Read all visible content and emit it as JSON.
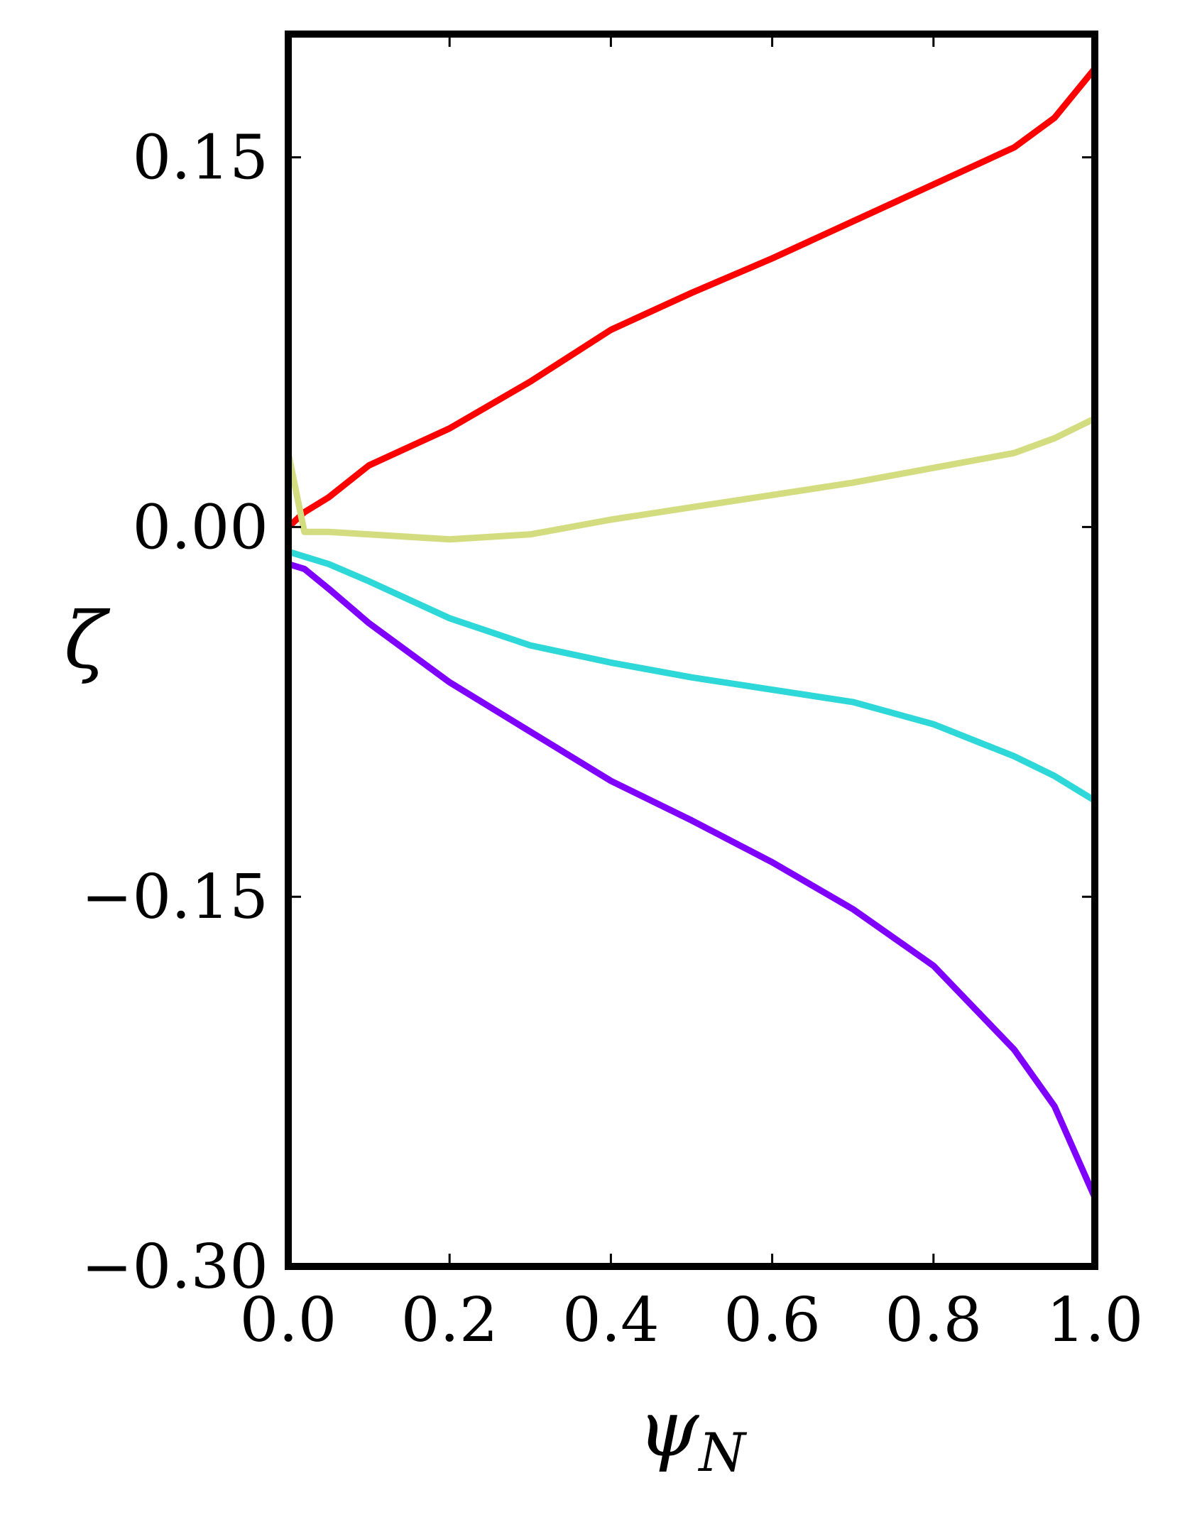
{
  "chart_data": {
    "type": "line",
    "xlabel": "ψ_N",
    "ylabel": "ζ",
    "xlim": [
      0,
      1
    ],
    "ylim": [
      -0.3,
      0.2
    ],
    "xticks": [
      "0.0",
      "0.2",
      "0.4",
      "0.6",
      "0.8",
      "1.0"
    ],
    "yticks": [
      "0.15",
      "0.00",
      "−0.15",
      "−0.30"
    ],
    "ytick_values": [
      0.15,
      0,
      -0.15,
      -0.3
    ],
    "xtick_values": [
      0,
      0.2,
      0.4,
      0.6,
      0.8,
      1.0
    ],
    "grid": false,
    "legend": "none",
    "x": [
      0,
      0.02,
      0.05,
      0.1,
      0.2,
      0.3,
      0.4,
      0.5,
      0.6,
      0.7,
      0.8,
      0.9,
      0.95,
      1.0
    ],
    "series": [
      {
        "color": "#ff0000",
        "values": [
          0,
          0.006,
          0.012,
          0.025,
          0.04,
          0.059,
          0.08,
          0.095,
          0.109,
          0.124,
          0.139,
          0.154,
          0.166,
          0.186
        ]
      },
      {
        "color": "#d4dc80",
        "values": [
          0.03,
          -0.002,
          -0.002,
          -0.003,
          -0.005,
          -0.003,
          0.003,
          0.008,
          0.013,
          0.018,
          0.024,
          0.03,
          0.036,
          0.044
        ]
      },
      {
        "color": "#2ed8d8",
        "values": [
          -0.01,
          -0.012,
          -0.015,
          -0.022,
          -0.037,
          -0.048,
          -0.055,
          -0.061,
          -0.066,
          -0.071,
          -0.08,
          -0.093,
          -0.101,
          -0.111
        ]
      },
      {
        "color": "#7f00ff",
        "values": [
          -0.015,
          -0.017,
          -0.025,
          -0.039,
          -0.063,
          -0.083,
          -0.103,
          -0.119,
          -0.136,
          -0.155,
          -0.178,
          -0.212,
          -0.235,
          -0.272
        ]
      }
    ]
  }
}
